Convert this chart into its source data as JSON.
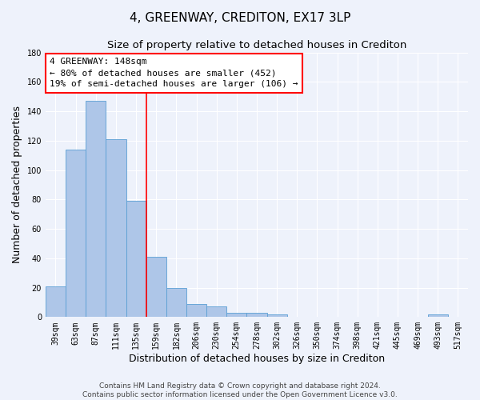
{
  "title": "4, GREENWAY, CREDITON, EX17 3LP",
  "subtitle": "Size of property relative to detached houses in Crediton",
  "xlabel": "Distribution of detached houses by size in Crediton",
  "ylabel": "Number of detached properties",
  "categories": [
    "39sqm",
    "63sqm",
    "87sqm",
    "111sqm",
    "135sqm",
    "159sqm",
    "182sqm",
    "206sqm",
    "230sqm",
    "254sqm",
    "278sqm",
    "302sqm",
    "326sqm",
    "350sqm",
    "374sqm",
    "398sqm",
    "421sqm",
    "445sqm",
    "469sqm",
    "493sqm",
    "517sqm"
  ],
  "values": [
    21,
    114,
    147,
    121,
    79,
    41,
    20,
    9,
    7,
    3,
    3,
    2,
    0,
    0,
    0,
    0,
    0,
    0,
    0,
    2,
    0
  ],
  "bar_color": "#aec6e8",
  "bar_edge_color": "#5a9fd4",
  "vline_x": 4.5,
  "vline_color": "red",
  "ylim": [
    0,
    180
  ],
  "yticks": [
    0,
    20,
    40,
    60,
    80,
    100,
    120,
    140,
    160,
    180
  ],
  "annotation_text": "4 GREENWAY: 148sqm\n← 80% of detached houses are smaller (452)\n19% of semi-detached houses are larger (106) →",
  "annotation_box_color": "white",
  "annotation_box_edge_color": "red",
  "footer_text": "Contains HM Land Registry data © Crown copyright and database right 2024.\nContains public sector information licensed under the Open Government Licence v3.0.",
  "background_color": "#eef2fb",
  "grid_color": "white",
  "title_fontsize": 11,
  "subtitle_fontsize": 9.5,
  "axis_label_fontsize": 9,
  "tick_fontsize": 7,
  "annotation_fontsize": 8,
  "footer_fontsize": 6.5
}
